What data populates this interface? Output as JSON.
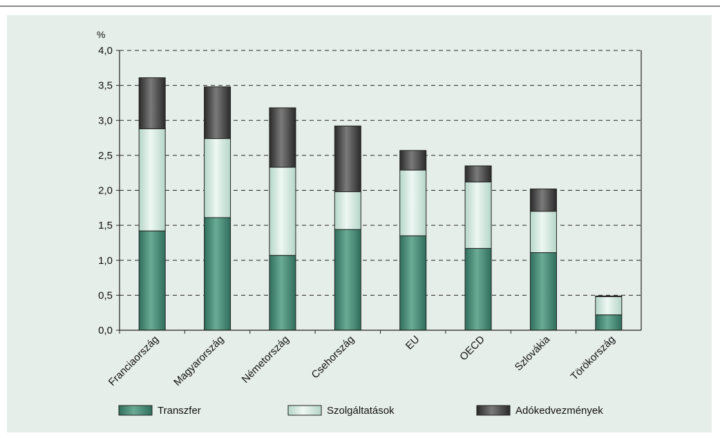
{
  "chart_data": {
    "type": "bar",
    "stacked": true,
    "unit_label": "%",
    "title": "",
    "xlabel": "",
    "ylabel": "%",
    "ylim": [
      0,
      4.0
    ],
    "yticks": [
      "0,0",
      "0,5",
      "1,0",
      "1,5",
      "2,0",
      "2,5",
      "3,0",
      "3,5",
      "4,0"
    ],
    "grid": true,
    "legend_position": "bottom",
    "categories": [
      "Franciaország",
      "Magyarország",
      "Németország",
      "Csehország",
      "EU",
      "OECD",
      "Szlovákia",
      "Törökország"
    ],
    "series": [
      {
        "name": "Transzfer",
        "values": [
          1.42,
          1.61,
          1.07,
          1.44,
          1.35,
          1.17,
          1.11,
          0.22
        ]
      },
      {
        "name": "Szolgáltatások",
        "values": [
          1.46,
          1.13,
          1.26,
          0.54,
          0.94,
          0.95,
          0.59,
          0.26
        ]
      },
      {
        "name": "Adókedvezmények",
        "values": [
          0.73,
          0.74,
          0.85,
          0.94,
          0.28,
          0.23,
          0.32,
          0.01
        ]
      }
    ],
    "colors": {
      "Transzfer": "#3f8c76",
      "Szolgáltatások": "#d2e9df",
      "Adókedvezmények": "#3c3c3c"
    }
  }
}
